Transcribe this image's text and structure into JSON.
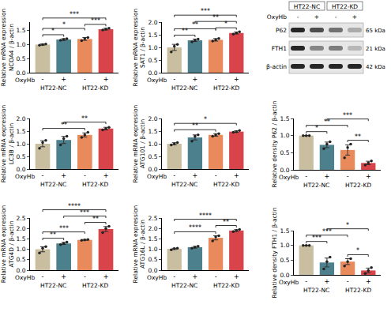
{
  "chart_data": [
    {
      "type": "bar",
      "y_label": [
        "Relative mRNA expression",
        "NCOA4 / β-actin"
      ],
      "x_label": "OxyHb",
      "categories": [
        "-",
        "+",
        "-",
        "+"
      ],
      "values": [
        1.0,
        1.18,
        1.2,
        1.55
      ],
      "errors": [
        0.02,
        0.03,
        0.05,
        0.03
      ],
      "points": [
        [
          0.98,
          1.0,
          1.02
        ],
        [
          1.15,
          1.18,
          1.21
        ],
        [
          1.14,
          1.21,
          1.25
        ],
        [
          1.52,
          1.55,
          1.58
        ]
      ],
      "colors": [
        "#c9be9f",
        "#4c808d",
        "#e98a5c",
        "#d9434a"
      ],
      "ylim": [
        0,
        1.8
      ],
      "yticks": [
        {
          "value": 0,
          "label": "0.0"
        },
        {
          "value": 0.5,
          "label": "0.5"
        },
        {
          "value": 1,
          "label": "1.0"
        },
        {
          "value": 1.5,
          "label": "1.5"
        }
      ],
      "groups": [
        {
          "label": "HT22-NC",
          "from": 0,
          "to": 1
        },
        {
          "label": "HT22-KD",
          "from": 2,
          "to": 3
        }
      ],
      "significance": [
        {
          "from": 0,
          "to": 1,
          "label": "*"
        },
        {
          "from": 0,
          "to": 2,
          "label": "*"
        },
        {
          "from": 2,
          "to": 3,
          "label": "***"
        },
        {
          "from": 0,
          "to": 3,
          "label": "***"
        }
      ]
    },
    {
      "type": "bar",
      "y_label": [
        "Relative mRNA expression",
        "LC3B / β-actin"
      ],
      "x_label": "OxyHb",
      "categories": [
        "-",
        "+",
        "-",
        "+"
      ],
      "values": [
        1.0,
        1.15,
        1.35,
        1.6
      ],
      "errors": [
        0.12,
        0.14,
        0.08,
        0.05
      ],
      "points": [
        [
          0.82,
          1.05,
          1.13
        ],
        [
          0.95,
          1.2,
          1.3
        ],
        [
          1.25,
          1.35,
          1.45
        ],
        [
          1.55,
          1.6,
          1.65
        ]
      ],
      "colors": [
        "#c9be9f",
        "#4c808d",
        "#e98a5c",
        "#d9434a"
      ],
      "ylim": [
        0,
        2.0
      ],
      "yticks": [
        {
          "value": 0,
          "label": "0.0"
        },
        {
          "value": 0.5,
          "label": "0.5"
        },
        {
          "value": 1,
          "label": "1.0"
        },
        {
          "value": 1.5,
          "label": "1.5"
        },
        {
          "value": 2,
          "label": "2.0"
        }
      ],
      "groups": [
        {
          "label": "HT22-NC",
          "from": 0,
          "to": 1
        },
        {
          "label": "HT22-KD",
          "from": 2,
          "to": 3
        }
      ],
      "significance": [
        {
          "from": 0,
          "to": 2,
          "label": "**"
        },
        {
          "from": 1,
          "to": 3,
          "label": "**"
        }
      ]
    },
    {
      "type": "bar",
      "y_label": [
        "Relative mRNA expression",
        "ATG4D / β-actin"
      ],
      "x_label": "OxyHb",
      "categories": [
        "-",
        "+",
        "-",
        "+"
      ],
      "values": [
        1.0,
        1.28,
        1.45,
        1.97
      ],
      "errors": [
        0.12,
        0.05,
        0.02,
        0.12
      ],
      "points": [
        [
          0.82,
          1.05,
          1.13
        ],
        [
          1.22,
          1.28,
          1.34
        ],
        [
          1.43,
          1.45,
          1.47
        ],
        [
          1.8,
          2.0,
          2.1
        ]
      ],
      "colors": [
        "#c9be9f",
        "#4c808d",
        "#e98a5c",
        "#d9434a"
      ],
      "ylim": [
        0,
        2.5
      ],
      "yticks": [
        {
          "value": 0,
          "label": "0.0"
        },
        {
          "value": 0.5,
          "label": "0.5"
        },
        {
          "value": 1,
          "label": "1.0"
        },
        {
          "value": 1.5,
          "label": "1.5"
        },
        {
          "value": 2,
          "label": "2.0"
        },
        {
          "value": 2.5,
          "label": "2.5"
        }
      ],
      "groups": [
        {
          "label": "HT22-NC",
          "from": 0,
          "to": 1
        },
        {
          "label": "HT22-KD",
          "from": 2,
          "to": 3
        }
      ],
      "significance": [
        {
          "from": 0,
          "to": 1,
          "label": "**"
        },
        {
          "from": 0,
          "to": 2,
          "label": "***"
        },
        {
          "from": 2,
          "to": 3,
          "label": "**"
        },
        {
          "from": 1,
          "to": 3,
          "label": "***"
        },
        {
          "from": 0,
          "to": 3,
          "label": "****"
        }
      ]
    },
    {
      "type": "bar",
      "y_label": [
        "Relative mRNA expression",
        "SAT1 / β-actin"
      ],
      "x_label": "OxyHb",
      "categories": [
        "-",
        "+",
        "-",
        "+"
      ],
      "values": [
        1.0,
        1.28,
        1.3,
        1.57
      ],
      "errors": [
        0.12,
        0.05,
        0.05,
        0.04
      ],
      "points": [
        [
          0.82,
          1.05,
          1.12
        ],
        [
          1.22,
          1.28,
          1.33
        ],
        [
          1.25,
          1.3,
          1.35
        ],
        [
          1.52,
          1.57,
          1.62
        ]
      ],
      "colors": [
        "#c9be9f",
        "#4c808d",
        "#e98a5c",
        "#d9434a"
      ],
      "ylim": [
        0,
        2.0
      ],
      "yticks": [
        {
          "value": 0,
          "label": "0.0"
        },
        {
          "value": 0.5,
          "label": "0.5"
        },
        {
          "value": 1,
          "label": "1.0"
        },
        {
          "value": 1.5,
          "label": "1.5"
        },
        {
          "value": 2,
          "label": "2.0"
        }
      ],
      "groups": [
        {
          "label": "HT22-NC",
          "from": 0,
          "to": 1
        },
        {
          "label": "HT22-KD",
          "from": 2,
          "to": 3
        }
      ],
      "significance": [
        {
          "from": 0,
          "to": 1,
          "label": "**"
        },
        {
          "from": 0,
          "to": 2,
          "label": "**"
        },
        {
          "from": 2,
          "to": 3,
          "label": "*"
        },
        {
          "from": 1,
          "to": 3,
          "label": "**"
        },
        {
          "from": 0,
          "to": 3,
          "label": "***"
        }
      ]
    },
    {
      "type": "bar",
      "y_label": [
        "Relative mRNA expression",
        "ATG101 / β-actin"
      ],
      "x_label": "OxyHb",
      "categories": [
        "-",
        "+",
        "-",
        "+"
      ],
      "values": [
        1.0,
        1.25,
        1.35,
        1.48
      ],
      "errors": [
        0.04,
        0.1,
        0.05,
        0.03
      ],
      "points": [
        [
          0.95,
          1.0,
          1.05
        ],
        [
          1.1,
          1.3,
          1.35
        ],
        [
          1.3,
          1.35,
          1.4
        ],
        [
          1.45,
          1.48,
          1.52
        ]
      ],
      "colors": [
        "#c9be9f",
        "#4c808d",
        "#e98a5c",
        "#d9434a"
      ],
      "ylim": [
        0,
        2.0
      ],
      "yticks": [
        {
          "value": 0,
          "label": "0.0"
        },
        {
          "value": 0.5,
          "label": "0.5"
        },
        {
          "value": 1,
          "label": "1.0"
        },
        {
          "value": 1.5,
          "label": "1.5"
        },
        {
          "value": 2,
          "label": "2.0"
        }
      ],
      "groups": [
        {
          "label": "HT22-NC",
          "from": 0,
          "to": 1
        },
        {
          "label": "HT22-KD",
          "from": 2,
          "to": 3
        }
      ],
      "significance": [
        {
          "from": 0,
          "to": 2,
          "label": "**"
        },
        {
          "from": 0,
          "to": 3,
          "label": "*"
        }
      ]
    },
    {
      "type": "bar",
      "y_label": [
        "Relative mRNA expression",
        "ATG16L / β-actin"
      ],
      "x_label": "OxyHb",
      "categories": [
        "-",
        "+",
        "-",
        "+"
      ],
      "values": [
        1.02,
        1.1,
        1.55,
        1.9
      ],
      "errors": [
        0.03,
        0.04,
        0.1,
        0.04
      ],
      "points": [
        [
          0.98,
          1.03,
          1.05
        ],
        [
          1.05,
          1.1,
          1.15
        ],
        [
          1.4,
          1.6,
          1.65
        ],
        [
          1.85,
          1.9,
          1.95
        ]
      ],
      "colors": [
        "#c9be9f",
        "#4c808d",
        "#e98a5c",
        "#d9434a"
      ],
      "ylim": [
        0,
        2.5
      ],
      "yticks": [
        {
          "value": 0,
          "label": "0.0"
        },
        {
          "value": 0.5,
          "label": "0.5"
        },
        {
          "value": 1,
          "label": "1.0"
        },
        {
          "value": 1.5,
          "label": "1.5"
        },
        {
          "value": 2,
          "label": "2.0"
        },
        {
          "value": 2.5,
          "label": "2.5"
        }
      ],
      "groups": [
        {
          "label": "HT22-NC",
          "from": 0,
          "to": 1
        },
        {
          "label": "HT22-KD",
          "from": 2,
          "to": 3
        }
      ],
      "significance": [
        {
          "from": 0,
          "to": 2,
          "label": "****"
        },
        {
          "from": 2,
          "to": 3,
          "label": "**"
        },
        {
          "from": 0,
          "to": 3,
          "label": "****"
        }
      ]
    },
    {
      "type": "bar",
      "y_label": [
        "Relative density P62 / β-actin"
      ],
      "x_label": "OxyHb",
      "categories": [
        "-",
        "+",
        "-",
        "+"
      ],
      "values": [
        1.0,
        0.73,
        0.58,
        0.2
      ],
      "errors": [
        0.0,
        0.08,
        0.15,
        0.05
      ],
      "points": [
        [
          1.0,
          1.0,
          1.0
        ],
        [
          0.62,
          0.75,
          0.82
        ],
        [
          0.35,
          0.65,
          0.75
        ],
        [
          0.14,
          0.2,
          0.26
        ]
      ],
      "colors": [
        "#c9be9f",
        "#4c808d",
        "#e98a5c",
        "#d9434a"
      ],
      "ylim": [
        0,
        1.5
      ],
      "yticks": [
        {
          "value": 0,
          "label": "0.0"
        },
        {
          "value": 0.5,
          "label": "0.5"
        },
        {
          "value": 1,
          "label": "1.0"
        },
        {
          "value": 1.5,
          "label": "1.5"
        }
      ],
      "groups": [
        {
          "label": "HT22-NC",
          "from": 0,
          "to": 1
        },
        {
          "label": "HT22-KD",
          "from": 2,
          "to": 3
        }
      ],
      "significance": [
        {
          "from": 0,
          "to": 1,
          "label": "*"
        },
        {
          "from": 0,
          "to": 2,
          "label": "**"
        },
        {
          "from": 2,
          "to": 3,
          "label": "**"
        },
        {
          "from": 1,
          "to": 3,
          "label": "***"
        }
      ]
    },
    {
      "type": "bar",
      "y_label": [
        "Relative density FTH1 / β-actin"
      ],
      "x_label": "OxyHb",
      "categories": [
        "-",
        "+",
        "-",
        "+"
      ],
      "values": [
        1.0,
        0.42,
        0.45,
        0.15
      ],
      "errors": [
        0.0,
        0.15,
        0.1,
        0.08
      ],
      "points": [
        [
          1.0,
          1.0,
          1.0
        ],
        [
          0.2,
          0.45,
          0.6
        ],
        [
          0.3,
          0.45,
          0.55
        ],
        [
          0.05,
          0.15,
          0.25
        ]
      ],
      "colors": [
        "#c9be9f",
        "#4c808d",
        "#e98a5c",
        "#d9434a"
      ],
      "ylim": [
        0,
        1.5
      ],
      "yticks": [
        {
          "value": 0,
          "label": "0.0"
        },
        {
          "value": 0.5,
          "label": "0.5"
        },
        {
          "value": 1,
          "label": "1.0"
        },
        {
          "value": 1.5,
          "label": "1.5"
        }
      ],
      "groups": [
        {
          "label": "HT22-NC",
          "from": 0,
          "to": 1
        },
        {
          "label": "HT22-KD",
          "from": 2,
          "to": 3
        }
      ],
      "significance": [
        {
          "from": 0,
          "to": 1,
          "label": "***"
        },
        {
          "from": 0,
          "to": 2,
          "label": "***"
        },
        {
          "from": 2,
          "to": 3,
          "label": "*"
        },
        {
          "from": 1,
          "to": 3,
          "label": "*"
        }
      ]
    }
  ],
  "blot": {
    "groups": [
      "HT22-NC",
      "HT22-KD"
    ],
    "treatment_label": "OxyHb",
    "lanes": [
      "-",
      "+",
      "-",
      "+"
    ],
    "rows": [
      {
        "label": "P62",
        "size": "65 kDa"
      },
      {
        "label": "FTH1",
        "size": "21 kDa"
      },
      {
        "label": "β-actin",
        "size": "42 kDa"
      }
    ]
  }
}
